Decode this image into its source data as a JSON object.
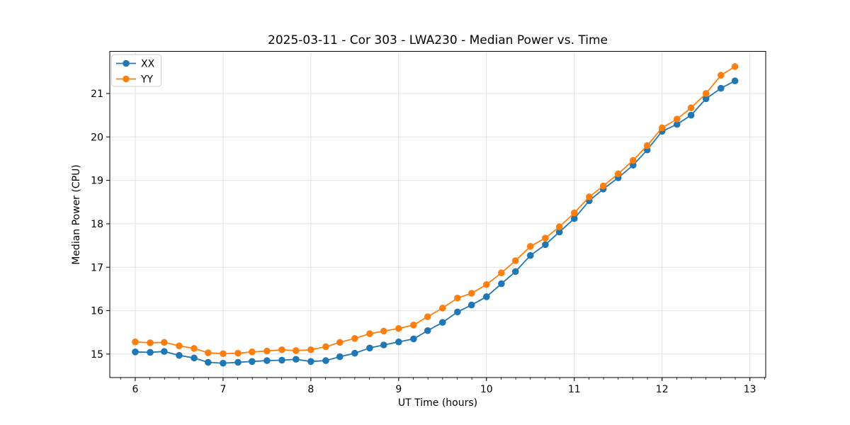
{
  "figure": {
    "background": "#ffffff"
  },
  "style": {
    "grid_color": "#e0e0e0",
    "spine_color": "#000000",
    "tick_color": "#000000",
    "legend_border": "#cccccc",
    "legend_bg": "#ffffff"
  },
  "chart_data": {
    "type": "line",
    "title": "2025-03-11 - Cor 303 - LWA230 - Median Power vs. Time",
    "xlabel": "UT Time (hours)",
    "ylabel": "Median Power (CPU)",
    "xlim": [
      5.71,
      13.18
    ],
    "ylim": [
      14.46,
      21.97
    ],
    "x_ticks": [
      6,
      7,
      8,
      9,
      10,
      11,
      12,
      13
    ],
    "y_ticks": [
      15,
      16,
      17,
      18,
      19,
      20,
      21
    ],
    "x_minor_step": 0.1666667,
    "grid": true,
    "legend_position": "upper-left",
    "x": [
      6.0,
      6.17,
      6.33,
      6.5,
      6.67,
      6.83,
      7.0,
      7.17,
      7.33,
      7.5,
      7.67,
      7.83,
      8.0,
      8.17,
      8.33,
      8.5,
      8.67,
      8.83,
      9.0,
      9.17,
      9.33,
      9.5,
      9.67,
      9.83,
      10.0,
      10.17,
      10.33,
      10.5,
      10.67,
      10.83,
      11.0,
      11.17,
      11.33,
      11.5,
      11.67,
      11.83,
      12.0,
      12.17,
      12.33,
      12.5,
      12.67,
      12.83
    ],
    "series": [
      {
        "name": "XX",
        "color": "#1f77b4",
        "values": [
          15.05,
          15.04,
          15.06,
          14.97,
          14.91,
          14.81,
          14.79,
          14.81,
          14.83,
          14.85,
          14.86,
          14.88,
          14.83,
          14.85,
          14.94,
          15.02,
          15.14,
          15.21,
          15.28,
          15.35,
          15.54,
          15.73,
          15.97,
          16.13,
          16.32,
          16.62,
          16.9,
          17.27,
          17.52,
          17.81,
          18.12,
          18.53,
          18.8,
          19.06,
          19.35,
          19.7,
          20.13,
          20.29,
          20.5,
          20.88,
          21.12,
          21.29
        ]
      },
      {
        "name": "YY",
        "color": "#ff7f0e",
        "values": [
          15.28,
          15.26,
          15.27,
          15.19,
          15.13,
          15.03,
          15.01,
          15.02,
          15.05,
          15.07,
          15.1,
          15.08,
          15.1,
          15.17,
          15.27,
          15.36,
          15.47,
          15.53,
          15.59,
          15.67,
          15.86,
          16.06,
          16.29,
          16.4,
          16.6,
          16.87,
          17.15,
          17.48,
          17.67,
          17.93,
          18.25,
          18.62,
          18.87,
          19.15,
          19.46,
          19.8,
          20.21,
          20.41,
          20.67,
          21.0,
          21.42,
          21.62
        ]
      }
    ]
  }
}
